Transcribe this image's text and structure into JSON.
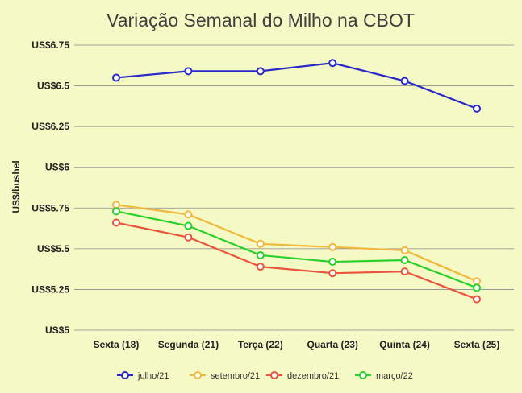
{
  "chart_data": {
    "type": "line",
    "title": "Variação Semanal do Milho na CBOT",
    "xlabel": "",
    "ylabel": "US$/bushel",
    "categories": [
      "Sexta (18)",
      "Segunda (21)",
      "Terça (22)",
      "Quarta (23)",
      "Quinta (24)",
      "Sexta (25)"
    ],
    "ylim": [
      5,
      6.75
    ],
    "yticks": [
      5,
      5.25,
      5.5,
      5.75,
      6,
      6.25,
      6.5,
      6.75
    ],
    "ytick_labels": [
      "US$5",
      "US$5.25",
      "US$5.5",
      "US$5.75",
      "US$6",
      "US$6.25",
      "US$6.5",
      "US$6.75"
    ],
    "grid": true,
    "legend_position": "bottom",
    "series": [
      {
        "name": "julho/21",
        "color": "#2a2ac8",
        "values": [
          6.55,
          6.59,
          6.59,
          6.64,
          6.53,
          6.36
        ]
      },
      {
        "name": "setembro/21",
        "color": "#f0b83c",
        "values": [
          5.77,
          5.71,
          5.53,
          5.51,
          5.49,
          5.3
        ]
      },
      {
        "name": "dezembro/21",
        "color": "#e8553c",
        "values": [
          5.66,
          5.57,
          5.39,
          5.35,
          5.36,
          5.19
        ]
      },
      {
        "name": "março/22",
        "color": "#2ad02a",
        "values": [
          5.73,
          5.64,
          5.46,
          5.42,
          5.43,
          5.26
        ]
      }
    ]
  }
}
